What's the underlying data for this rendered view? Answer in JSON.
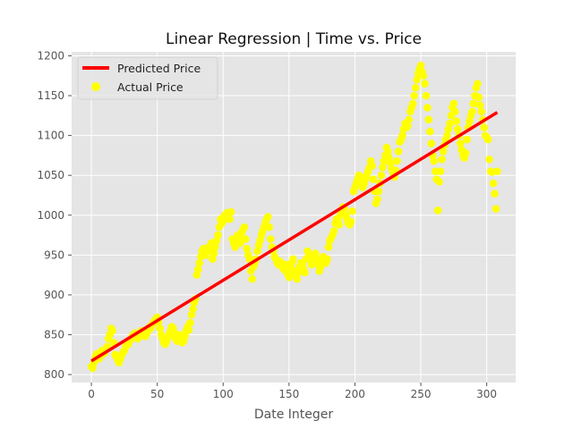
{
  "chart_data": {
    "type": "scatter",
    "title": "Linear Regression | Time vs. Price",
    "xlabel": "Date Integer",
    "ylabel": "",
    "xlim": [
      -15,
      322
    ],
    "ylim": [
      790,
      1205
    ],
    "x_ticks": [
      0,
      50,
      100,
      150,
      200,
      250,
      300
    ],
    "y_ticks": [
      800,
      850,
      900,
      950,
      1000,
      1050,
      1100,
      1150,
      1200
    ],
    "grid": true,
    "legend_position": "top-left",
    "background_color": "#e5e5e5",
    "series": [
      {
        "name": "Predicted Price",
        "kind": "line",
        "color": "#ff0000",
        "x": [
          0,
          308
        ],
        "y": [
          817,
          1129
        ]
      },
      {
        "name": "Actual Price",
        "kind": "scatter",
        "color": "#ffff00",
        "points": [
          [
            0,
            810
          ],
          [
            1,
            808
          ],
          [
            2,
            815
          ],
          [
            3,
            822
          ],
          [
            4,
            826
          ],
          [
            5,
            825
          ],
          [
            6,
            820
          ],
          [
            7,
            828
          ],
          [
            8,
            830
          ],
          [
            9,
            826
          ],
          [
            10,
            827
          ],
          [
            11,
            832
          ],
          [
            12,
            835
          ],
          [
            13,
            845
          ],
          [
            14,
            850
          ],
          [
            15,
            858
          ],
          [
            16,
            855
          ],
          [
            17,
            840
          ],
          [
            18,
            825
          ],
          [
            19,
            822
          ],
          [
            20,
            818
          ],
          [
            21,
            815
          ],
          [
            22,
            820
          ],
          [
            23,
            825
          ],
          [
            24,
            828
          ],
          [
            25,
            830
          ],
          [
            26,
            835
          ],
          [
            27,
            840
          ],
          [
            28,
            838
          ],
          [
            29,
            842
          ],
          [
            30,
            845
          ],
          [
            31,
            848
          ],
          [
            32,
            850
          ],
          [
            33,
            852
          ],
          [
            34,
            848
          ],
          [
            35,
            845
          ],
          [
            36,
            847
          ],
          [
            37,
            850
          ],
          [
            38,
            855
          ],
          [
            39,
            852
          ],
          [
            40,
            850
          ],
          [
            41,
            848
          ],
          [
            42,
            852
          ],
          [
            43,
            855
          ],
          [
            44,
            860
          ],
          [
            45,
            858
          ],
          [
            46,
            862
          ],
          [
            47,
            865
          ],
          [
            48,
            868
          ],
          [
            49,
            870
          ],
          [
            50,
            872
          ],
          [
            51,
            866
          ],
          [
            52,
            858
          ],
          [
            53,
            850
          ],
          [
            54,
            845
          ],
          [
            55,
            840
          ],
          [
            56,
            838
          ],
          [
            57,
            842
          ],
          [
            58,
            846
          ],
          [
            59,
            850
          ],
          [
            60,
            855
          ],
          [
            61,
            860
          ],
          [
            62,
            858
          ],
          [
            63,
            852
          ],
          [
            64,
            845
          ],
          [
            65,
            842
          ],
          [
            66,
            846
          ],
          [
            67,
            850
          ],
          [
            68,
            845
          ],
          [
            69,
            840
          ],
          [
            70,
            842
          ],
          [
            71,
            848
          ],
          [
            72,
            855
          ],
          [
            73,
            860
          ],
          [
            74,
            856
          ],
          [
            75,
            865
          ],
          [
            76,
            875
          ],
          [
            77,
            882
          ],
          [
            78,
            890
          ],
          [
            79,
            895
          ],
          [
            80,
            925
          ],
          [
            81,
            932
          ],
          [
            82,
            940
          ],
          [
            83,
            948
          ],
          [
            84,
            955
          ],
          [
            85,
            958
          ],
          [
            86,
            952
          ],
          [
            87,
            950
          ],
          [
            88,
            955
          ],
          [
            89,
            960
          ],
          [
            90,
            958
          ],
          [
            91,
            965
          ],
          [
            92,
            945
          ],
          [
            93,
            952
          ],
          [
            94,
            960
          ],
          [
            95,
            968
          ],
          [
            96,
            975
          ],
          [
            97,
            985
          ],
          [
            98,
            995
          ],
          [
            99,
            990
          ],
          [
            100,
            992
          ],
          [
            101,
            1000
          ],
          [
            102,
            998
          ],
          [
            103,
            1003
          ],
          [
            104,
            1000
          ],
          [
            105,
            995
          ],
          [
            106,
            1004
          ],
          [
            107,
            970
          ],
          [
            108,
            965
          ],
          [
            109,
            960
          ],
          [
            110,
            968
          ],
          [
            111,
            975
          ],
          [
            112,
            972
          ],
          [
            113,
            965
          ],
          [
            114,
            978
          ],
          [
            115,
            982
          ],
          [
            116,
            985
          ],
          [
            117,
            970
          ],
          [
            118,
            958
          ],
          [
            119,
            950
          ],
          [
            120,
            945
          ],
          [
            121,
            930
          ],
          [
            122,
            920
          ],
          [
            123,
            935
          ],
          [
            124,
            940
          ],
          [
            125,
            945
          ],
          [
            126,
            955
          ],
          [
            127,
            962
          ],
          [
            128,
            968
          ],
          [
            129,
            975
          ],
          [
            130,
            980
          ],
          [
            131,
            985
          ],
          [
            132,
            990
          ],
          [
            133,
            995
          ],
          [
            134,
            998
          ],
          [
            135,
            985
          ],
          [
            136,
            970
          ],
          [
            137,
            960
          ],
          [
            138,
            955
          ],
          [
            139,
            948
          ],
          [
            140,
            945
          ],
          [
            141,
            940
          ],
          [
            142,
            938
          ],
          [
            143,
            942
          ],
          [
            144,
            940
          ],
          [
            145,
            935
          ],
          [
            146,
            932
          ],
          [
            147,
            938
          ],
          [
            148,
            930
          ],
          [
            149,
            926
          ],
          [
            150,
            922
          ],
          [
            151,
            935
          ],
          [
            152,
            940
          ],
          [
            153,
            945
          ],
          [
            154,
            930
          ],
          [
            155,
            925
          ],
          [
            156,
            920
          ],
          [
            157,
            928
          ],
          [
            158,
            935
          ],
          [
            159,
            940
          ],
          [
            160,
            938
          ],
          [
            161,
            932
          ],
          [
            162,
            928
          ],
          [
            163,
            945
          ],
          [
            164,
            955
          ],
          [
            165,
            950
          ],
          [
            166,
            945
          ],
          [
            167,
            938
          ],
          [
            168,
            940
          ],
          [
            169,
            948
          ],
          [
            170,
            952
          ],
          [
            171,
            946
          ],
          [
            172,
            938
          ],
          [
            173,
            930
          ],
          [
            174,
            935
          ],
          [
            175,
            942
          ],
          [
            176,
            948
          ],
          [
            177,
            944
          ],
          [
            178,
            940
          ],
          [
            179,
            945
          ],
          [
            180,
            960
          ],
          [
            181,
            968
          ],
          [
            182,
            972
          ],
          [
            183,
            975
          ],
          [
            184,
            980
          ],
          [
            185,
            990
          ],
          [
            186,
            995
          ],
          [
            187,
            992
          ],
          [
            188,
            988
          ],
          [
            189,
            1000
          ],
          [
            190,
            1005
          ],
          [
            191,
            1010
          ],
          [
            192,
            1008
          ],
          [
            193,
            1000
          ],
          [
            194,
            995
          ],
          [
            195,
            990
          ],
          [
            196,
            988
          ],
          [
            197,
            992
          ],
          [
            198,
            1005
          ],
          [
            199,
            1030
          ],
          [
            200,
            1035
          ],
          [
            201,
            1040
          ],
          [
            202,
            1045
          ],
          [
            203,
            1050
          ],
          [
            204,
            1048
          ],
          [
            205,
            1040
          ],
          [
            206,
            1035
          ],
          [
            207,
            1040
          ],
          [
            208,
            1045
          ],
          [
            209,
            1050
          ],
          [
            210,
            1055
          ],
          [
            211,
            1060
          ],
          [
            212,
            1068
          ],
          [
            213,
            1062
          ],
          [
            214,
            1045
          ],
          [
            215,
            1030
          ],
          [
            216,
            1015
          ],
          [
            217,
            1020
          ],
          [
            218,
            1030
          ],
          [
            219,
            1040
          ],
          [
            220,
            1050
          ],
          [
            221,
            1060
          ],
          [
            222,
            1068
          ],
          [
            223,
            1075
          ],
          [
            224,
            1085
          ],
          [
            225,
            1080
          ],
          [
            226,
            1072
          ],
          [
            227,
            1065
          ],
          [
            228,
            1058
          ],
          [
            229,
            1052
          ],
          [
            230,
            1048
          ],
          [
            231,
            1056
          ],
          [
            232,
            1068
          ],
          [
            233,
            1080
          ],
          [
            234,
            1092
          ],
          [
            235,
            1095
          ],
          [
            236,
            1100
          ],
          [
            237,
            1108
          ],
          [
            238,
            1115
          ],
          [
            239,
            1110
          ],
          [
            240,
            1112
          ],
          [
            241,
            1120
          ],
          [
            242,
            1130
          ],
          [
            243,
            1135
          ],
          [
            244,
            1140
          ],
          [
            245,
            1150
          ],
          [
            246,
            1160
          ],
          [
            247,
            1170
          ],
          [
            248,
            1178
          ],
          [
            249,
            1183
          ],
          [
            250,
            1188
          ],
          [
            251,
            1180
          ],
          [
            252,
            1175
          ],
          [
            253,
            1165
          ],
          [
            254,
            1150
          ],
          [
            255,
            1135
          ],
          [
            256,
            1120
          ],
          [
            257,
            1105
          ],
          [
            258,
            1090
          ],
          [
            259,
            1075
          ],
          [
            260,
            1068
          ],
          [
            261,
            1055
          ],
          [
            262,
            1045
          ],
          [
            263,
            1006
          ],
          [
            264,
            1042
          ],
          [
            265,
            1055
          ],
          [
            266,
            1070
          ],
          [
            267,
            1080
          ],
          [
            268,
            1088
          ],
          [
            269,
            1095
          ],
          [
            270,
            1100
          ],
          [
            271,
            1108
          ],
          [
            272,
            1115
          ],
          [
            273,
            1125
          ],
          [
            274,
            1135
          ],
          [
            275,
            1140
          ],
          [
            276,
            1130
          ],
          [
            277,
            1118
          ],
          [
            278,
            1108
          ],
          [
            279,
            1100
          ],
          [
            280,
            1090
          ],
          [
            281,
            1082
          ],
          [
            282,
            1075
          ],
          [
            283,
            1072
          ],
          [
            284,
            1078
          ],
          [
            285,
            1095
          ],
          [
            286,
            1110
          ],
          [
            287,
            1118
          ],
          [
            288,
            1125
          ],
          [
            289,
            1130
          ],
          [
            290,
            1140
          ],
          [
            291,
            1150
          ],
          [
            292,
            1160
          ],
          [
            293,
            1165
          ],
          [
            294,
            1148
          ],
          [
            295,
            1138
          ],
          [
            296,
            1130
          ],
          [
            297,
            1120
          ],
          [
            298,
            1110
          ],
          [
            299,
            1100
          ],
          [
            300,
            1098
          ],
          [
            301,
            1095
          ],
          [
            302,
            1070
          ],
          [
            303,
            1055
          ],
          [
            304,
            1054
          ],
          [
            305,
            1040
          ],
          [
            306,
            1027
          ],
          [
            307,
            1008
          ],
          [
            308,
            1055
          ]
        ]
      }
    ]
  }
}
